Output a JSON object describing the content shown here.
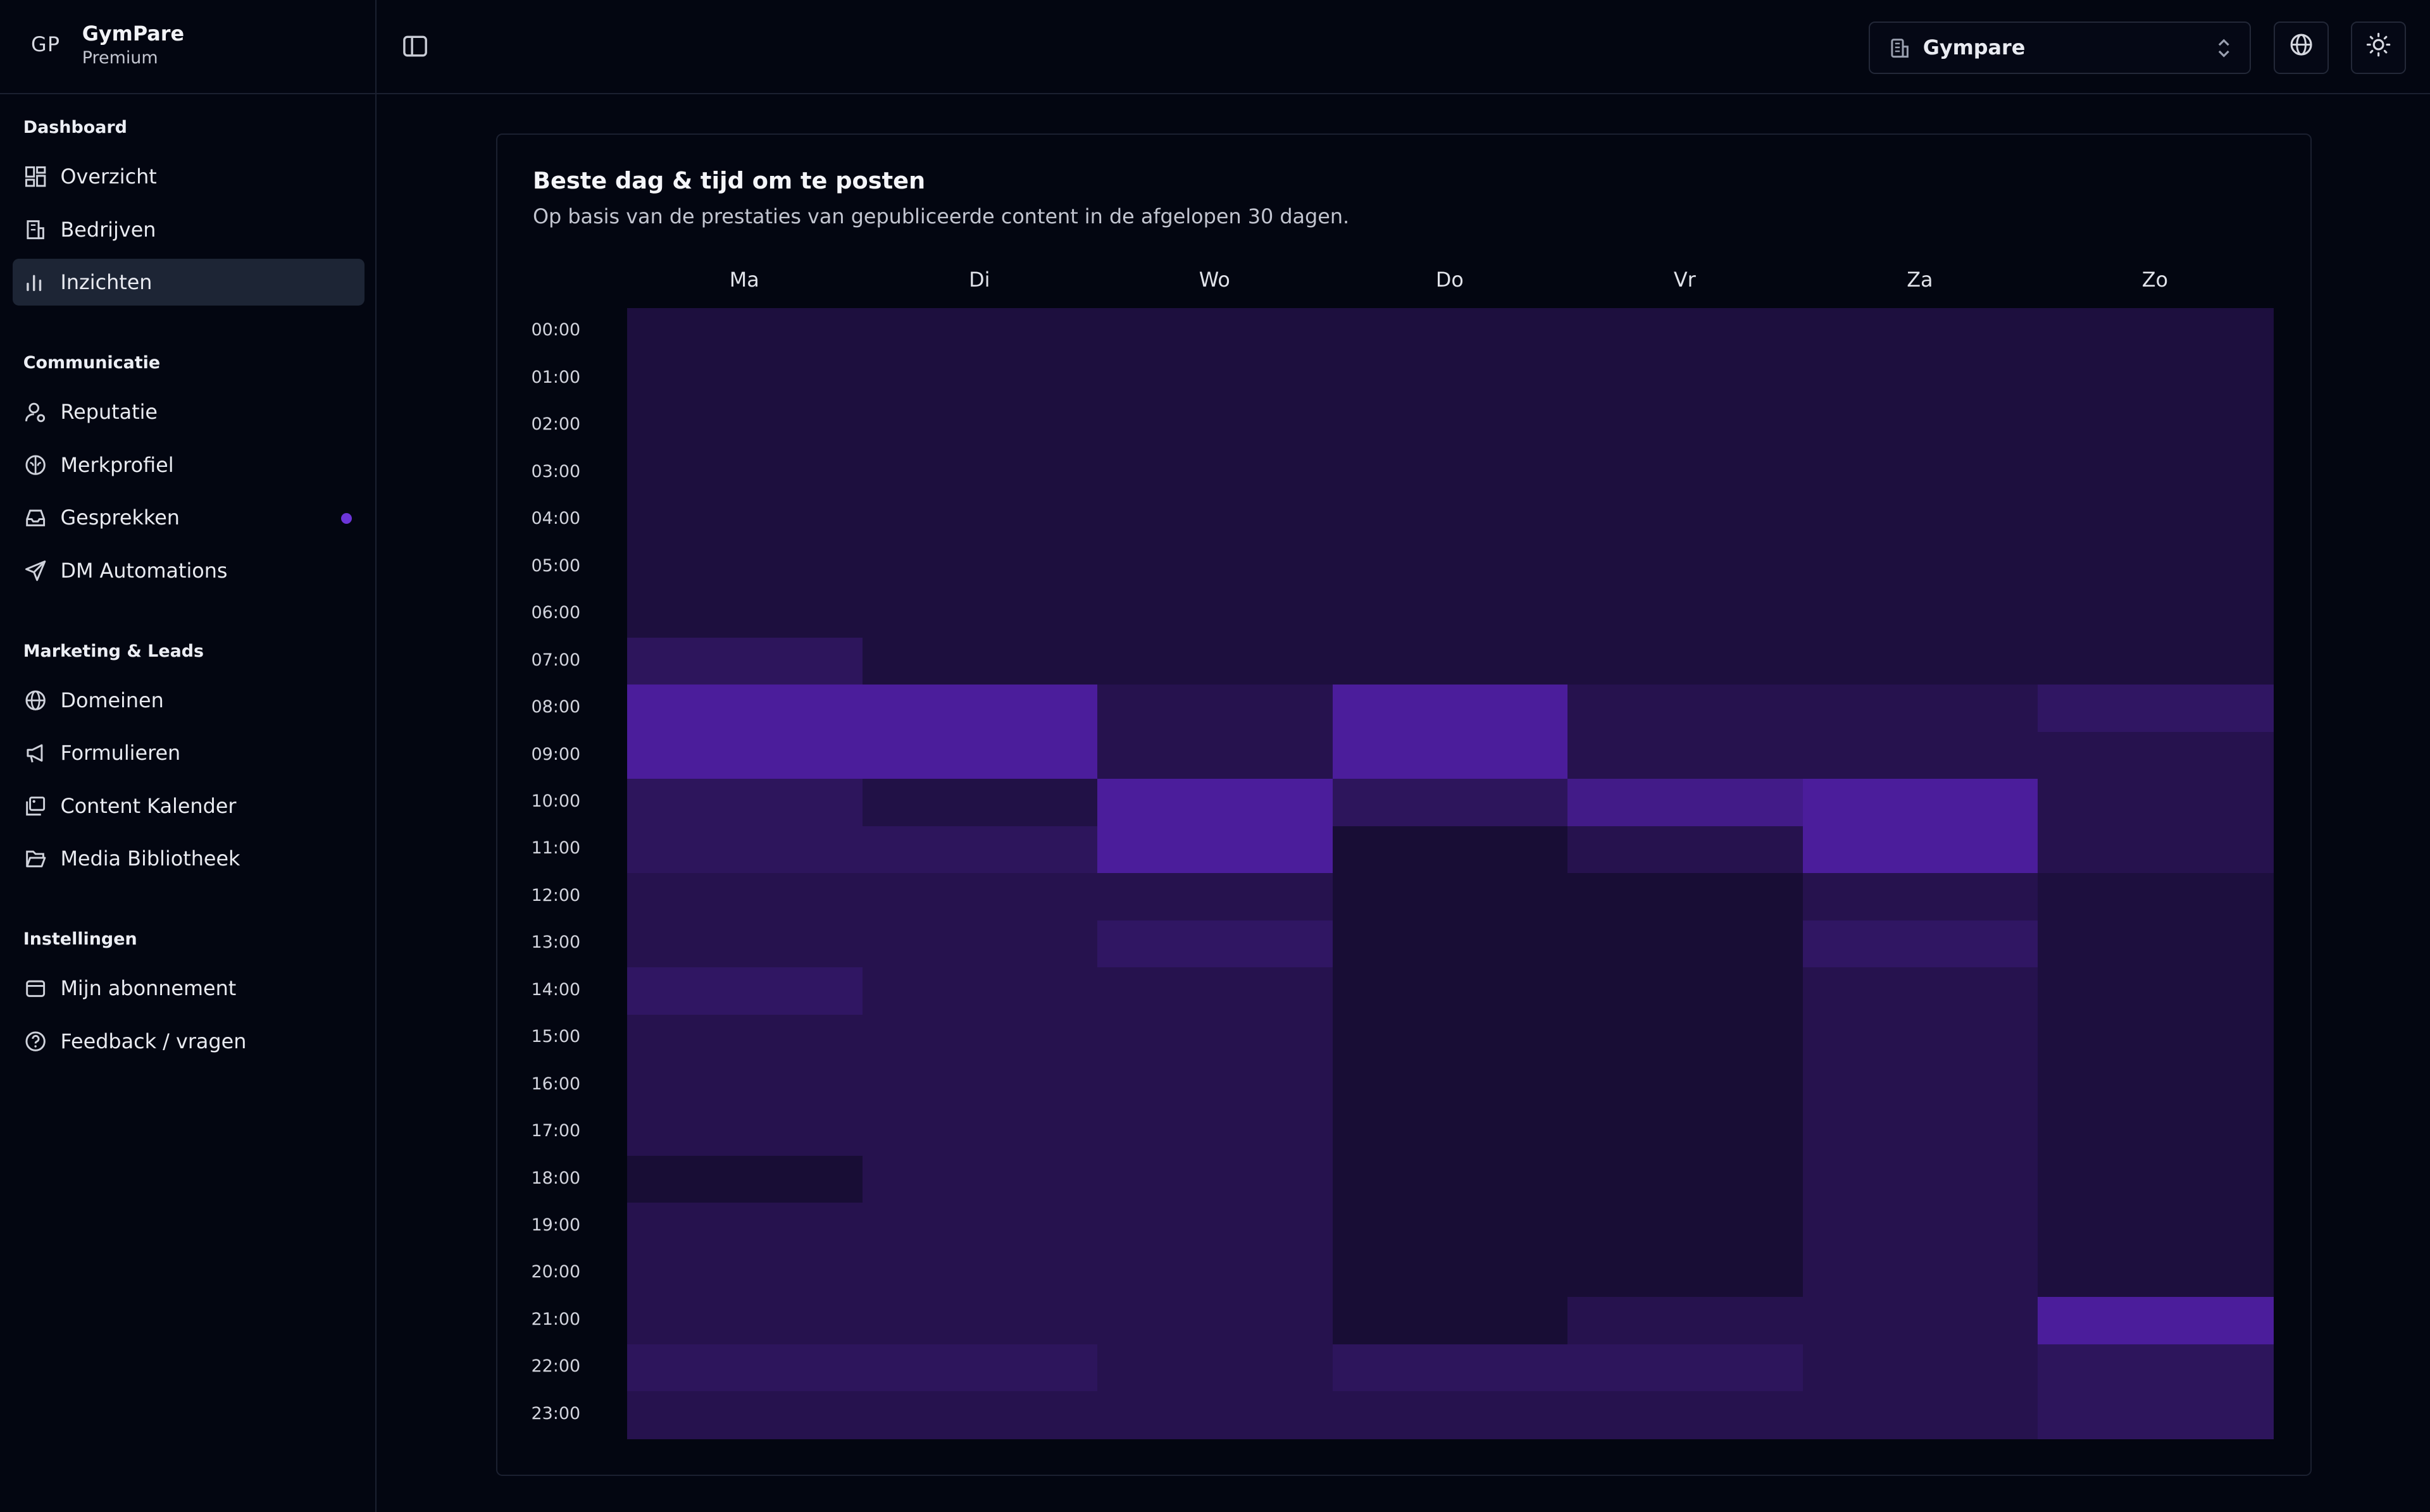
{
  "sidebar": {
    "initials": "GP",
    "brand_name": "GymPare",
    "plan": "Premium",
    "sections": [
      {
        "title": "Dashboard",
        "items": [
          {
            "label": "Overzicht",
            "icon": "grid-icon"
          },
          {
            "label": "Bedrijven",
            "icon": "building-icon"
          },
          {
            "label": "Inzichten",
            "icon": "bar-chart-icon",
            "active": true
          }
        ]
      },
      {
        "title": "Communicatie",
        "items": [
          {
            "label": "Reputatie",
            "icon": "user-star-icon"
          },
          {
            "label": "Merkprofiel",
            "icon": "brain-icon"
          },
          {
            "label": "Gesprekken",
            "icon": "inbox-icon",
            "badge_dot": true
          },
          {
            "label": "DM Automations",
            "icon": "send-icon"
          }
        ]
      },
      {
        "title": "Marketing & Leads",
        "items": [
          {
            "label": "Domeinen",
            "icon": "globe-icon"
          },
          {
            "label": "Formulieren",
            "icon": "megaphone-icon"
          },
          {
            "label": "Content Kalender",
            "icon": "images-icon"
          },
          {
            "label": "Media Bibliotheek",
            "icon": "folder-open-icon"
          }
        ]
      },
      {
        "title": "Instellingen",
        "items": [
          {
            "label": "Mijn abonnement",
            "icon": "wallet-icon"
          },
          {
            "label": "Feedback / vragen",
            "icon": "help-circle-icon"
          }
        ]
      }
    ]
  },
  "header": {
    "company_select": "Gympare",
    "language_icon": "globe-icon",
    "theme_icon": "sun-icon",
    "sidebar_toggle_icon": "panel-left-icon"
  },
  "card": {
    "title": "Beste dag & tijd om te posten",
    "subtitle": "Op basis van de prestaties van gepubliceerde content in de afgelopen 30 dagen."
  },
  "chart_data": {
    "type": "heatmap",
    "title": "Beste dag & tijd om te posten",
    "x_categories": [
      "Ma",
      "Di",
      "Wo",
      "Do",
      "Vr",
      "Za",
      "Zo"
    ],
    "y_categories": [
      "00:00",
      "01:00",
      "02:00",
      "03:00",
      "04:00",
      "05:00",
      "06:00",
      "07:00",
      "08:00",
      "09:00",
      "10:00",
      "11:00",
      "12:00",
      "13:00",
      "14:00",
      "15:00",
      "16:00",
      "17:00",
      "18:00",
      "19:00",
      "20:00",
      "21:00",
      "22:00",
      "23:00"
    ],
    "intensity_scale": [
      0,
      1
    ],
    "values_by_day": {
      "Ma": [
        0.15,
        0.15,
        0.15,
        0.15,
        0.15,
        0.15,
        0.15,
        0.35,
        0.85,
        0.85,
        0.35,
        0.35,
        0.25,
        0.25,
        0.4,
        0.25,
        0.25,
        0.25,
        0.1,
        0.25,
        0.25,
        0.25,
        0.35,
        0.25
      ],
      "Di": [
        0.15,
        0.15,
        0.15,
        0.15,
        0.15,
        0.15,
        0.15,
        0.15,
        0.85,
        0.85,
        0.2,
        0.35,
        0.25,
        0.25,
        0.25,
        0.25,
        0.25,
        0.25,
        0.25,
        0.25,
        0.25,
        0.25,
        0.35,
        0.25
      ],
      "Wo": [
        0.15,
        0.15,
        0.15,
        0.15,
        0.15,
        0.15,
        0.15,
        0.15,
        0.25,
        0.25,
        0.85,
        0.85,
        0.25,
        0.4,
        0.25,
        0.25,
        0.25,
        0.25,
        0.25,
        0.25,
        0.25,
        0.25,
        0.25,
        0.25
      ],
      "Do": [
        0.15,
        0.15,
        0.15,
        0.15,
        0.15,
        0.15,
        0.15,
        0.15,
        0.85,
        0.85,
        0.35,
        0.1,
        0.1,
        0.1,
        0.1,
        0.1,
        0.1,
        0.1,
        0.1,
        0.1,
        0.1,
        0.1,
        0.35,
        0.25
      ],
      "Vr": [
        0.15,
        0.15,
        0.15,
        0.15,
        0.15,
        0.15,
        0.15,
        0.15,
        0.25,
        0.25,
        0.7,
        0.25,
        0.1,
        0.1,
        0.1,
        0.1,
        0.1,
        0.1,
        0.1,
        0.1,
        0.1,
        0.25,
        0.35,
        0.25
      ],
      "Za": [
        0.15,
        0.15,
        0.15,
        0.15,
        0.15,
        0.15,
        0.15,
        0.15,
        0.25,
        0.25,
        0.85,
        0.85,
        0.25,
        0.4,
        0.25,
        0.25,
        0.25,
        0.25,
        0.25,
        0.25,
        0.25,
        0.25,
        0.25,
        0.25
      ],
      "Zo": [
        0.15,
        0.15,
        0.15,
        0.15,
        0.15,
        0.15,
        0.15,
        0.15,
        0.4,
        0.25,
        0.25,
        0.25,
        0.15,
        0.15,
        0.15,
        0.15,
        0.15,
        0.15,
        0.15,
        0.15,
        0.15,
        0.85,
        0.35,
        0.35
      ]
    },
    "colors": {
      "low": "#0f0a25",
      "mid": "#2a1456",
      "high": "#5420ae"
    },
    "grid": false,
    "legend": "none"
  }
}
